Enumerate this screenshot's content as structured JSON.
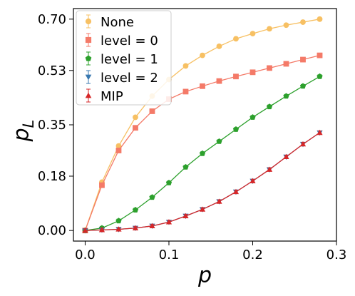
{
  "chart_data": {
    "type": "line",
    "xlabel": "p",
    "ylabel": "p_L",
    "xlabel_text": "p",
    "ylabel_main": "p",
    "ylabel_sub": "L",
    "xlim": [
      -0.014,
      0.3
    ],
    "ylim": [
      -0.035,
      0.735
    ],
    "x_ticks": [
      0.0,
      0.1,
      0.2,
      0.3
    ],
    "x_tick_labels": [
      "0.0",
      "0.1",
      "0.2",
      "0.3"
    ],
    "y_ticks": [
      0.0,
      0.18,
      0.35,
      0.53,
      0.7
    ],
    "y_tick_labels": [
      "0.00",
      "0.18",
      "0.35",
      "0.53",
      "0.70"
    ],
    "legend_position": "top-left",
    "grid": false,
    "x": [
      0.0,
      0.02,
      0.04,
      0.06,
      0.08,
      0.1,
      0.12,
      0.14,
      0.16,
      0.18,
      0.2,
      0.22,
      0.24,
      0.26,
      0.28
    ],
    "series": [
      {
        "name": "None",
        "color": "#f7c063",
        "marker": "circle",
        "values": [
          0.0,
          0.16,
          0.28,
          0.375,
          0.445,
          0.5,
          0.545,
          0.58,
          0.61,
          0.635,
          0.652,
          0.668,
          0.68,
          0.69,
          0.7
        ]
      },
      {
        "name": "level = 0",
        "color": "#f47a68",
        "marker": "square",
        "values": [
          0.0,
          0.15,
          0.265,
          0.34,
          0.395,
          0.435,
          0.46,
          0.478,
          0.495,
          0.51,
          0.524,
          0.538,
          0.552,
          0.566,
          0.58
        ]
      },
      {
        "name": "level = 1",
        "color": "#2ca02c",
        "marker": "pentagon",
        "values": [
          0.0,
          0.008,
          0.032,
          0.068,
          0.11,
          0.158,
          0.21,
          0.255,
          0.295,
          0.335,
          0.375,
          0.41,
          0.445,
          0.478,
          0.51
        ]
      },
      {
        "name": "level = 2",
        "color": "#3878b0",
        "marker": "triangle-down",
        "values": [
          0.0,
          0.002,
          0.004,
          0.008,
          0.015,
          0.028,
          0.048,
          0.07,
          0.096,
          0.128,
          0.164,
          0.202,
          0.244,
          0.286,
          0.324
        ]
      },
      {
        "name": "MIP",
        "color": "#d62728",
        "marker": "triangle-up",
        "values": [
          0.0,
          0.002,
          0.004,
          0.008,
          0.015,
          0.028,
          0.048,
          0.07,
          0.096,
          0.128,
          0.164,
          0.202,
          0.244,
          0.286,
          0.324
        ]
      }
    ]
  }
}
